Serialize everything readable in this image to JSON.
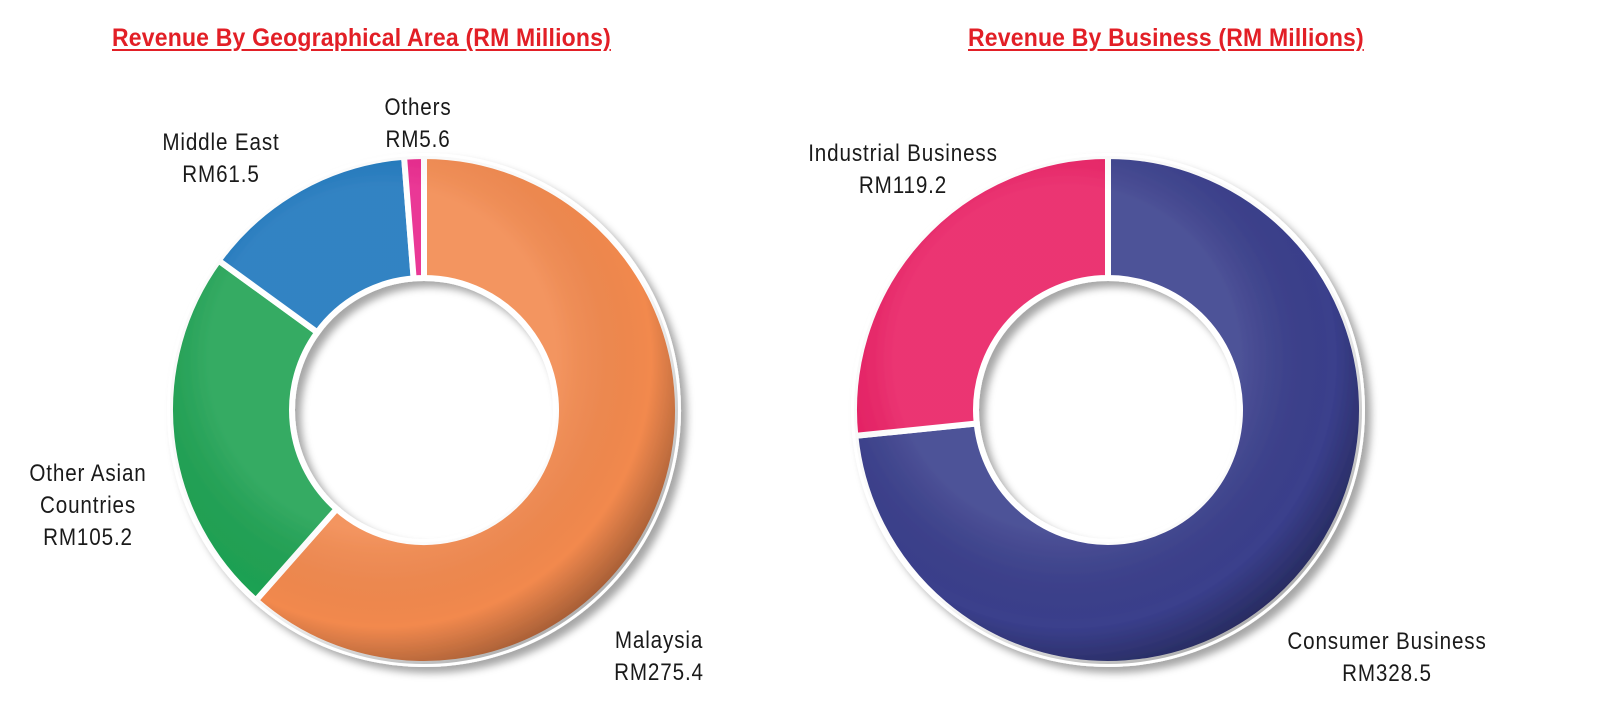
{
  "chart_data": [
    {
      "type": "pie",
      "title": "Revenue By Geographical Area (RM Millions)",
      "slices": [
        {
          "name": "Malaysia",
          "value": 275.4,
          "label": "RM275.4",
          "color": "#f2894e"
        },
        {
          "name": "Other Asian Countries",
          "value": 105.2,
          "label": "RM105.2",
          "color": "#1fa253"
        },
        {
          "name": "Middle East",
          "value": 61.5,
          "label": "RM61.5",
          "color": "#1b75bc"
        },
        {
          "name": "Others",
          "value": 5.6,
          "label": "RM5.6",
          "color": "#e8238a"
        }
      ]
    },
    {
      "type": "pie",
      "title": "Revenue By Business (RM Millions)",
      "slices": [
        {
          "name": "Consumer Business",
          "value": 328.5,
          "label": "RM328.5",
          "color": "#3a3f8c"
        },
        {
          "name": "Industrial Business",
          "value": 119.2,
          "label": "RM119.2",
          "color": "#e91e63"
        }
      ]
    }
  ]
}
